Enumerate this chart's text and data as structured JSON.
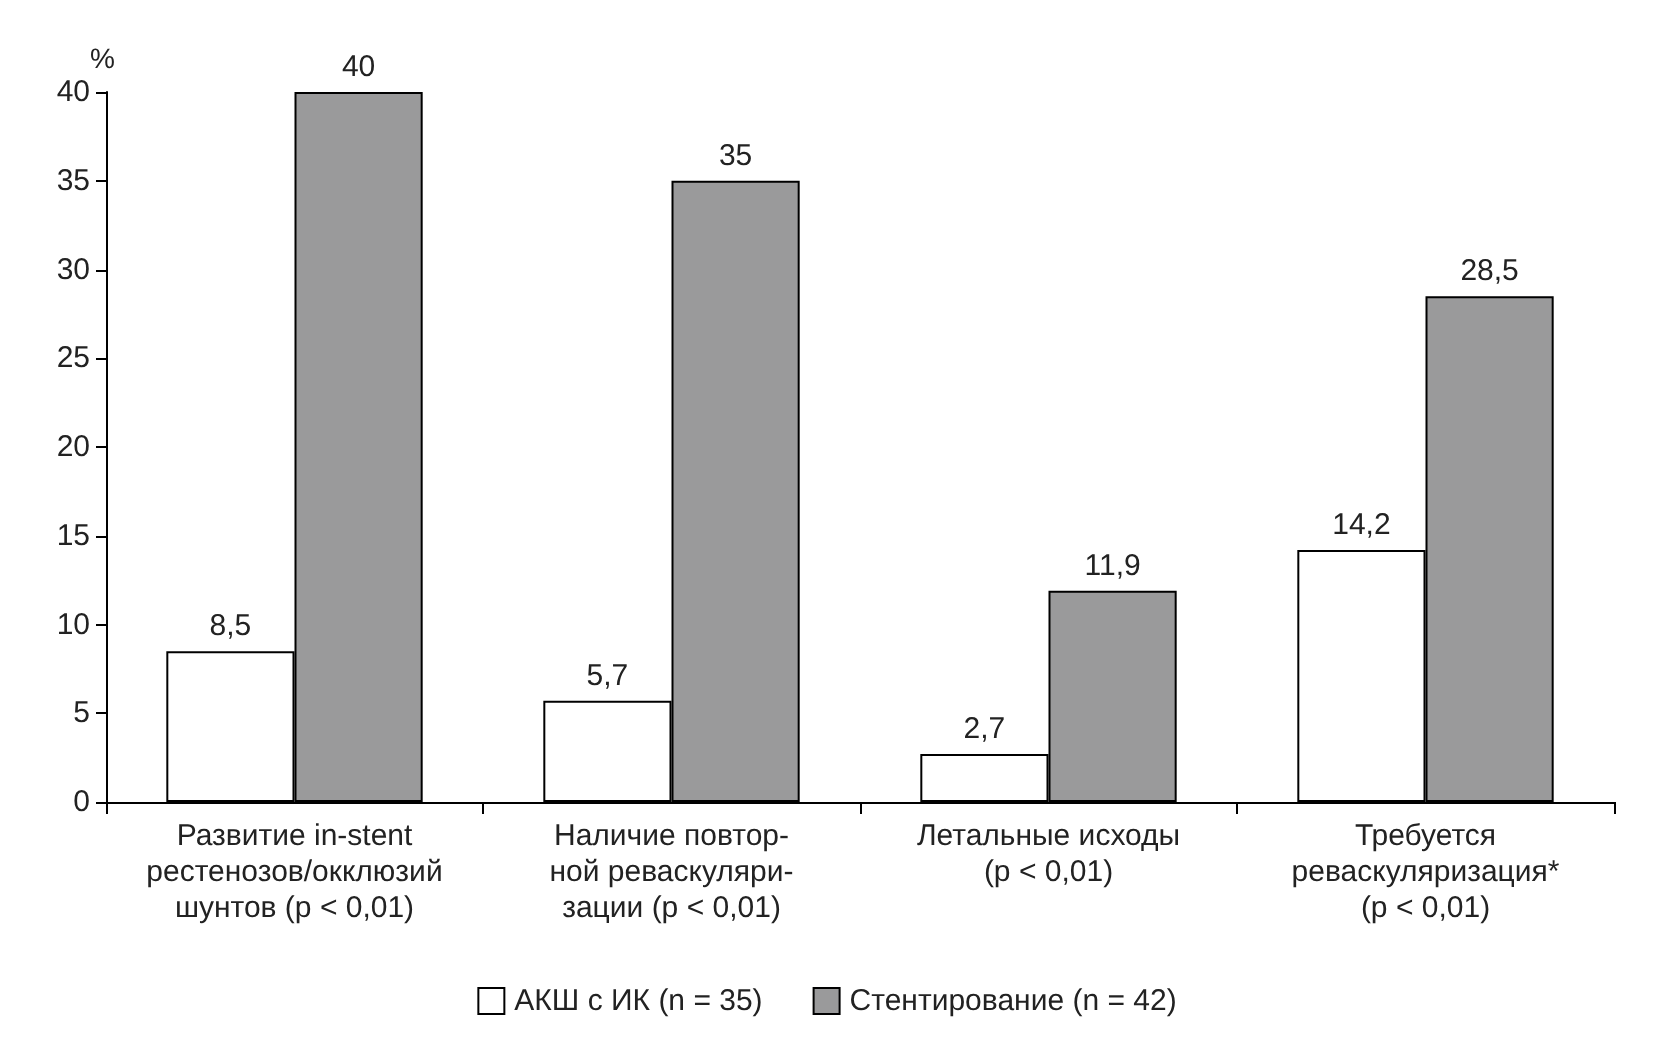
{
  "chart_data": {
    "type": "bar",
    "ylabel": "%",
    "categories": [
      "Развитие in-stent\nрестенозов/окклюзий\nшунтов (p < 0,01)",
      "Наличие повтор-\nной реваскуляри-\nзации (p < 0,01)",
      "Летальные исходы\n(p < 0,01)",
      "Требуется\nреваскуляризация*\n(p < 0,01)"
    ],
    "series": [
      {
        "name": "АКШ с ИК (n = 35)",
        "color": "#ffffff",
        "values": [
          8.5,
          5.7,
          2.7,
          14.2
        ],
        "value_labels": [
          "8,5",
          "5,7",
          "2,7",
          "14,2"
        ]
      },
      {
        "name": "Стентирование (n = 42)",
        "color": "#9a9a9b",
        "values": [
          40,
          35,
          11.9,
          28.5
        ],
        "value_labels": [
          "40",
          "35",
          "11,9",
          "28,5"
        ]
      }
    ],
    "ylim": [
      0,
      40
    ],
    "yticks": [
      0,
      5,
      10,
      15,
      20,
      25,
      30,
      35,
      40
    ],
    "grid": false,
    "legend": "bottom"
  }
}
